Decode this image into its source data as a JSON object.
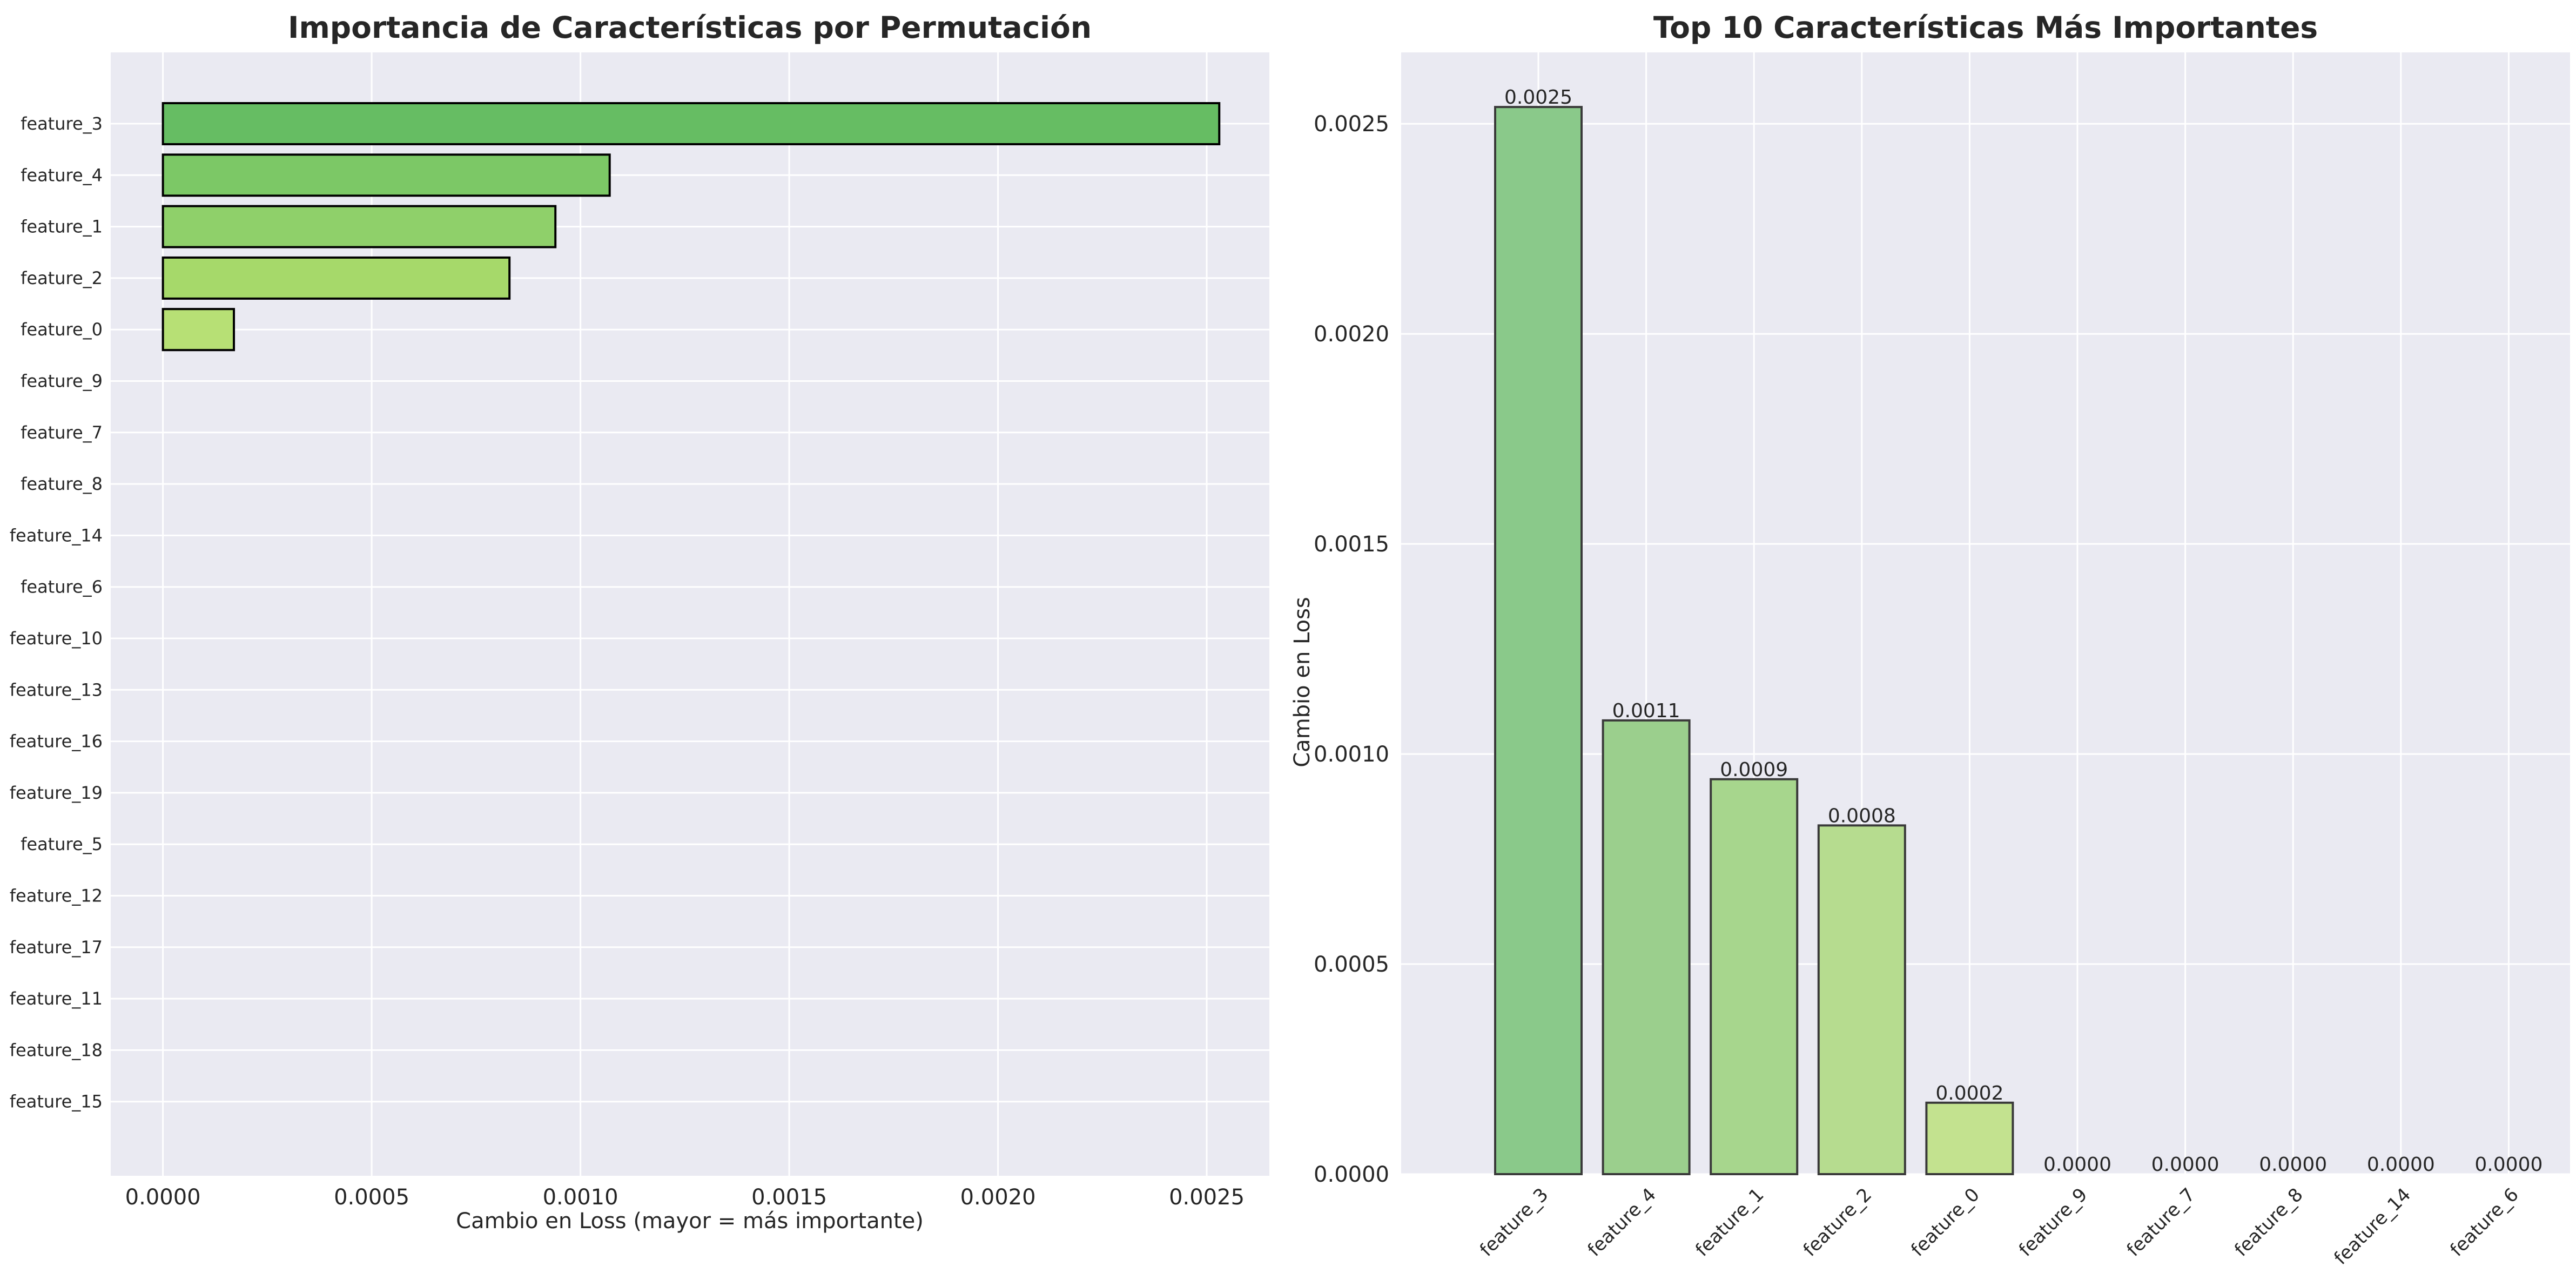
{
  "chart_data": [
    {
      "type": "bar",
      "orientation": "horizontal",
      "title": "Importancia de Características por Permutación",
      "xlabel": "Cambio en Loss (mayor = más importante)",
      "ylabel": "",
      "categories": [
        "feature_3",
        "feature_4",
        "feature_1",
        "feature_2",
        "feature_0",
        "feature_9",
        "feature_7",
        "feature_8",
        "feature_14",
        "feature_6",
        "feature_10",
        "feature_13",
        "feature_16",
        "feature_19",
        "feature_5",
        "feature_12",
        "feature_17",
        "feature_11",
        "feature_18",
        "feature_15"
      ],
      "values": [
        0.00253,
        0.00107,
        0.00094,
        0.00083,
        0.00017,
        0.0,
        0.0,
        0.0,
        0.0,
        0.0,
        0.0,
        0.0,
        0.0,
        0.0,
        0.0,
        0.0,
        0.0,
        0.0,
        0.0,
        0.0
      ],
      "xlim": [
        -0.000125,
        0.00265
      ],
      "xticks": [
        "0.0000",
        "0.0005",
        "0.0010",
        "0.0015",
        "0.0020",
        "0.0025"
      ],
      "colors": [
        "#66bd63",
        "#7cc866",
        "#8fd06a",
        "#a6d96a",
        "#b7e075",
        "#000000",
        "#000000",
        "#000000",
        "#000000",
        "#000000",
        "#000000",
        "#000000",
        "#000000",
        "#000000",
        "#000000",
        "#000000",
        "#000000",
        "#000000",
        "#000000",
        "#000000"
      ],
      "grid": true
    },
    {
      "type": "bar",
      "title": "Top 10 Características Más Importantes",
      "xlabel": "",
      "ylabel": "Cambio en Loss",
      "categories": [
        "feature_3",
        "feature_4",
        "feature_1",
        "feature_2",
        "feature_0",
        "feature_9",
        "feature_7",
        "feature_8",
        "feature_14",
        "feature_6"
      ],
      "values": [
        0.00254,
        0.00108,
        0.00094,
        0.00083,
        0.00017,
        0.0,
        0.0,
        0.0,
        0.0,
        0.0
      ],
      "data_labels": [
        "0.0025",
        "0.0011",
        "0.0009",
        "0.0008",
        "0.0002",
        "0.0000",
        "0.0000",
        "0.0000",
        "0.0000",
        "0.0000"
      ],
      "ylim": [
        0,
        0.00267
      ],
      "yticks": [
        "0.0000",
        "0.0005",
        "0.0010",
        "0.0015",
        "0.0020",
        "0.0025"
      ],
      "colors": [
        "#8ac98a",
        "#9bcf8d",
        "#a7d68d",
        "#b6dc8f",
        "#c3e28f",
        "#c7e48f",
        "#c7e48f",
        "#c7e48f",
        "#c7e48f",
        "#c7e48f"
      ],
      "grid": true
    }
  ]
}
